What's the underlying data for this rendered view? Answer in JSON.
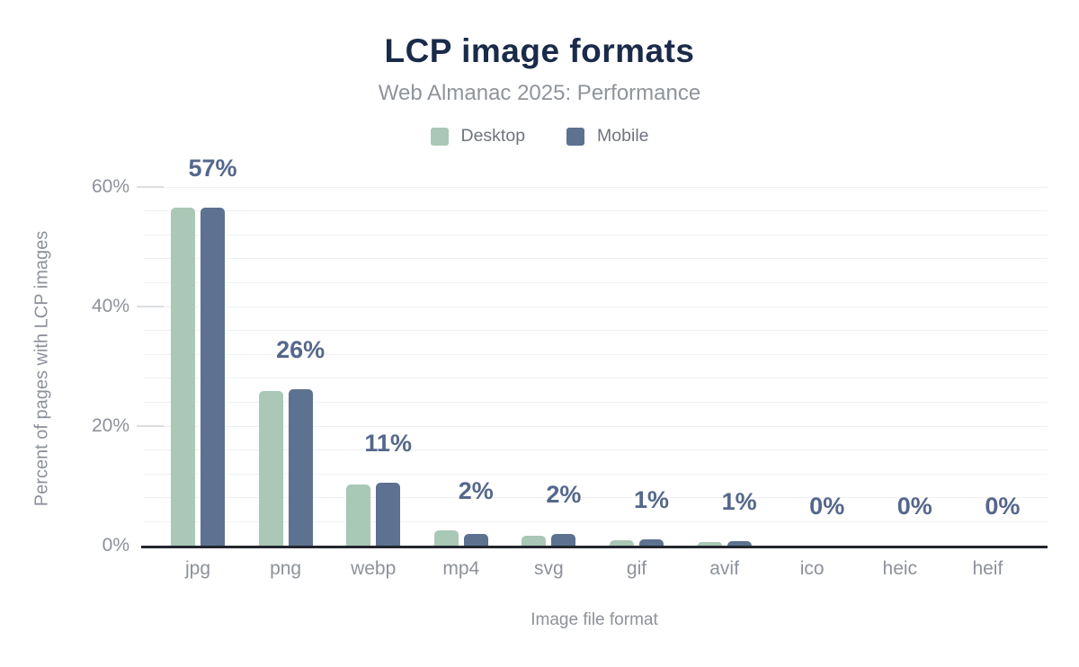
{
  "chart_data": {
    "type": "bar",
    "title": "LCP image formats",
    "subtitle": "Web Almanac 2025: Performance",
    "xlabel": "Image file format",
    "ylabel": "Percent of pages with LCP images",
    "categories": [
      "jpg",
      "png",
      "webp",
      "mp4",
      "svg",
      "gif",
      "avif",
      "ico",
      "heic",
      "heif"
    ],
    "series": [
      {
        "name": "Desktop",
        "color": "#a9c8b6",
        "values": [
          56.5,
          25.8,
          10.2,
          2.5,
          1.7,
          0.9,
          0.6,
          0,
          0,
          0
        ]
      },
      {
        "name": "Mobile",
        "color": "#5d7190",
        "values": [
          56.5,
          26.1,
          10.6,
          2.0,
          1.9,
          1.0,
          0.7,
          0,
          0,
          0
        ]
      }
    ],
    "bar_labels": [
      "57%",
      "26%",
      "11%",
      "2%",
      "2%",
      "1%",
      "1%",
      "0%",
      "0%",
      "0%"
    ],
    "yticks": [
      {
        "value": 0,
        "label": "0%"
      },
      {
        "value": 20,
        "label": "20%"
      },
      {
        "value": 40,
        "label": "40%"
      },
      {
        "value": 60,
        "label": "60%"
      }
    ],
    "ylim": [
      0,
      60
    ],
    "minor_grid_step": 4,
    "grid": true,
    "legend_position": "top",
    "colors": {
      "title": "#1a2b49",
      "subtitle": "#8f949b",
      "legend_text": "#6f747e",
      "tick_label": "#8d919b",
      "axis_title": "#8d919b",
      "data_label": "#55678b",
      "gridline": "#f0f1f4",
      "tick_dash": "#dcdee2",
      "axis_line": "#23262e",
      "background": "#ffffff"
    }
  }
}
